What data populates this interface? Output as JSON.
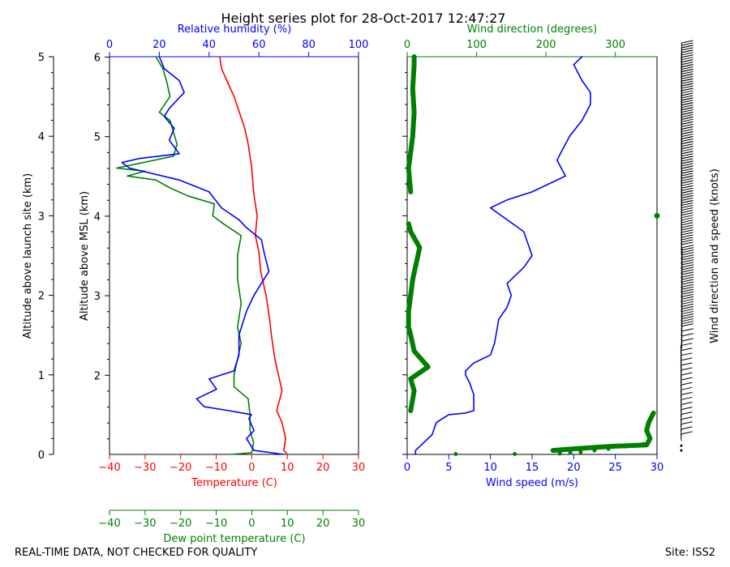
{
  "title": "Height series plot for 28-Oct-2017 12:47:27",
  "footer": {
    "left": "REAL-TIME DATA, NOT CHECKED FOR QUALITY",
    "right": "Site: ISS2"
  },
  "colors": {
    "temperature": "#ff0000",
    "dewpoint": "#008000",
    "humidity": "#0000ff",
    "wind_speed": "#0000ff",
    "wind_direction": "#008000",
    "barbs": "#000000"
  },
  "chart_data": [
    {
      "type": "line",
      "name": "thermo-panel",
      "ylabel_left": "Altitude above launch site (km)",
      "ylabel_inner": "Altitude above MSL (km)",
      "xlabel_temperature": "Temperature (C)",
      "xlabel_dewpoint": "Dew point temperature (C)",
      "xlabel_humidity": "Relative humidity (%)",
      "temperature_xlim": [
        -40,
        30
      ],
      "humidity_xlim": [
        0,
        100
      ],
      "ylim_agl": [
        0,
        5
      ],
      "agl_ticks": [
        "0",
        "1",
        "2",
        "3",
        "4",
        "5"
      ],
      "msl_ticks": [
        "2",
        "3",
        "4",
        "5",
        "6"
      ],
      "temp_ticks": [
        "−40",
        "−30",
        "−20",
        "−10",
        "0",
        "10",
        "20",
        "30"
      ],
      "rh_ticks": [
        "0",
        "20",
        "40",
        "60",
        "80",
        "100"
      ],
      "series": [
        {
          "name": "Temperature",
          "points": [
            [
              10,
              0.0
            ],
            [
              9,
              0.05
            ],
            [
              9.5,
              0.2
            ],
            [
              8.5,
              0.4
            ],
            [
              7,
              0.55
            ],
            [
              8.5,
              0.8
            ],
            [
              7.5,
              1.0
            ],
            [
              6.5,
              1.2
            ],
            [
              5.5,
              1.5
            ],
            [
              5,
              1.7
            ],
            [
              4,
              2.0
            ],
            [
              2.5,
              2.3
            ],
            [
              2,
              2.55
            ],
            [
              1,
              2.75
            ],
            [
              1.5,
              3.0
            ],
            [
              0.5,
              3.3
            ],
            [
              0,
              3.6
            ],
            [
              -1,
              3.9
            ],
            [
              -2,
              4.1
            ],
            [
              -3.5,
              4.3
            ],
            [
              -5,
              4.5
            ],
            [
              -7,
              4.7
            ],
            [
              -8.5,
              4.85
            ],
            [
              -9,
              5.0
            ]
          ]
        },
        {
          "name": "Dew point",
          "points": [
            [
              -6,
              0.0
            ],
            [
              0,
              0.02
            ],
            [
              0.5,
              0.15
            ],
            [
              -0.5,
              0.3
            ],
            [
              -0.5,
              0.5
            ],
            [
              -1,
              0.7
            ],
            [
              -5,
              0.85
            ],
            [
              -5,
              1.0
            ],
            [
              -4,
              1.2
            ],
            [
              -3,
              1.4
            ],
            [
              -4,
              1.6
            ],
            [
              -3,
              1.9
            ],
            [
              -4,
              2.2
            ],
            [
              -4,
              2.5
            ],
            [
              -3,
              2.75
            ],
            [
              -8,
              2.9
            ],
            [
              -11,
              3.0
            ],
            [
              -10.5,
              3.15
            ],
            [
              -18,
              3.25
            ],
            [
              -23,
              3.35
            ],
            [
              -27,
              3.45
            ],
            [
              -35,
              3.5
            ],
            [
              -30,
              3.56
            ],
            [
              -38,
              3.6
            ],
            [
              -22,
              3.75
            ],
            [
              -21,
              3.9
            ],
            [
              -22,
              4.05
            ],
            [
              -23,
              4.2
            ],
            [
              -26,
              4.3
            ],
            [
              -23,
              4.5
            ],
            [
              -24,
              4.7
            ],
            [
              -25,
              4.85
            ],
            [
              -27,
              5.0
            ]
          ]
        },
        {
          "name": "Relative humidity",
          "points": [
            [
              70,
              0.0
            ],
            [
              58,
              0.05
            ],
            [
              55,
              0.2
            ],
            [
              58,
              0.3
            ],
            [
              56,
              0.45
            ],
            [
              57,
              0.5
            ],
            [
              48,
              0.55
            ],
            [
              38,
              0.6
            ],
            [
              35,
              0.7
            ],
            [
              43,
              0.82
            ],
            [
              40,
              0.95
            ],
            [
              50,
              1.05
            ],
            [
              52,
              1.25
            ],
            [
              52,
              1.5
            ],
            [
              55,
              1.8
            ],
            [
              58,
              2.0
            ],
            [
              64,
              2.3
            ],
            [
              62,
              2.55
            ],
            [
              61,
              2.7
            ],
            [
              55,
              2.85
            ],
            [
              52,
              2.95
            ],
            [
              45,
              3.1
            ],
            [
              40,
              3.3
            ],
            [
              28,
              3.45
            ],
            [
              8,
              3.6
            ],
            [
              5,
              3.67
            ],
            [
              12,
              3.72
            ],
            [
              28,
              3.78
            ],
            [
              24,
              3.95
            ],
            [
              26,
              4.1
            ],
            [
              22,
              4.25
            ],
            [
              24,
              4.35
            ],
            [
              30,
              4.55
            ],
            [
              28,
              4.7
            ],
            [
              22,
              4.85
            ],
            [
              20,
              5.0
            ]
          ]
        }
      ]
    },
    {
      "type": "line",
      "name": "wind-panel",
      "xlabel_speed": "Wind speed (m/s)",
      "xlabel_direction": "Wind direction (degrees)",
      "ylabel_barbs": "Wind direction and speed (knots)",
      "speed_xlim": [
        0,
        30
      ],
      "direction_xlim": [
        0,
        360
      ],
      "ylim_agl": [
        0,
        5
      ],
      "speed_ticks": [
        "0",
        "5",
        "10",
        "15",
        "20",
        "25",
        "30"
      ],
      "direction_ticks": [
        "0",
        "100",
        "200",
        "300"
      ],
      "series": [
        {
          "name": "Wind speed",
          "points": [
            [
              1,
              0.0
            ],
            [
              1,
              0.05
            ],
            [
              2,
              0.15
            ],
            [
              3,
              0.25
            ],
            [
              3.5,
              0.4
            ],
            [
              5,
              0.5
            ],
            [
              7,
              0.52
            ],
            [
              8,
              0.55
            ],
            [
              8,
              0.75
            ],
            [
              7.5,
              0.9
            ],
            [
              7,
              1.0
            ],
            [
              7,
              1.05
            ],
            [
              8,
              1.15
            ],
            [
              10,
              1.25
            ],
            [
              10.5,
              1.4
            ],
            [
              11,
              1.7
            ],
            [
              12,
              1.85
            ],
            [
              12.5,
              2.0
            ],
            [
              12,
              2.15
            ],
            [
              14,
              2.35
            ],
            [
              15,
              2.5
            ],
            [
              14,
              2.8
            ],
            [
              10,
              3.1
            ],
            [
              12,
              3.2
            ],
            [
              15,
              3.3
            ],
            [
              17,
              3.4
            ],
            [
              19,
              3.5
            ],
            [
              18,
              3.7
            ],
            [
              18.5,
              3.8
            ],
            [
              19,
              3.9
            ],
            [
              19.5,
              4.0
            ],
            [
              21,
              4.2
            ],
            [
              22,
              4.4
            ],
            [
              22,
              4.55
            ],
            [
              21,
              4.7
            ],
            [
              20,
              4.9
            ],
            [
              21,
              5.0
            ]
          ]
        },
        {
          "name": "Wind direction",
          "points": [
            [
              210,
              0.05
            ],
            [
              240,
              0.07
            ],
            [
              290,
              0.1
            ],
            [
              345,
              0.12
            ],
            [
              350,
              0.2
            ],
            [
              345,
              0.3
            ],
            [
              348,
              0.4
            ],
            [
              355,
              0.52
            ],
            [
              5,
              0.55
            ],
            [
              10,
              0.8
            ],
            [
              5,
              0.95
            ],
            [
              30,
              1.1
            ],
            [
              10,
              1.3
            ],
            [
              5,
              1.5
            ],
            [
              2,
              1.6
            ],
            [
              2,
              1.8
            ],
            [
              5,
              2.0
            ],
            [
              8,
              2.2
            ],
            [
              18,
              2.6
            ],
            [
              5,
              2.8
            ],
            [
              2,
              2.9
            ],
            [
              360,
              3.0
            ],
            [
              5,
              3.3
            ],
            [
              2,
              3.6
            ],
            [
              5,
              3.8
            ],
            [
              8,
              4.0
            ],
            [
              10,
              4.3
            ],
            [
              8,
              4.6
            ],
            [
              10,
              4.9
            ],
            [
              10,
              5.0
            ]
          ]
        }
      ]
    }
  ]
}
